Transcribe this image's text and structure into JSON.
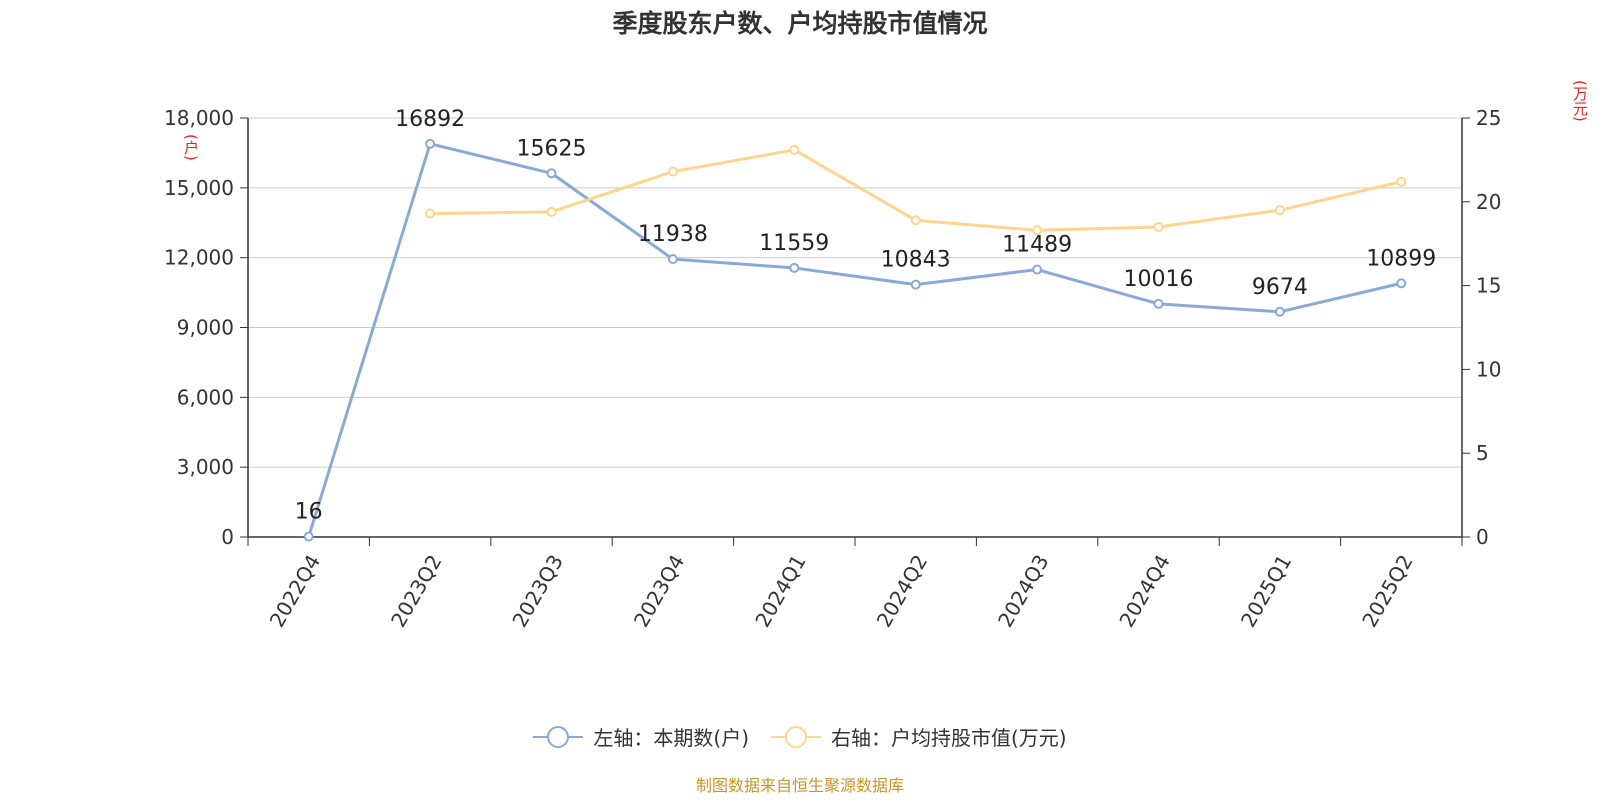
{
  "title": "季度股东户数、户均持股市值情况",
  "source": "制图数据来自恒生聚源数据库",
  "units": {
    "left": "(户)",
    "right": "(万元)"
  },
  "legend": [
    {
      "label": "左轴：本期数(户)",
      "color": "#8aaad6"
    },
    {
      "label": "右轴：户均持股市值(万元)",
      "color": "#fdd58e"
    }
  ],
  "chart_data": {
    "type": "line",
    "categories": [
      "2022Q4",
      "2023Q2",
      "2023Q3",
      "2023Q4",
      "2024Q1",
      "2024Q2",
      "2024Q3",
      "2024Q4",
      "2025Q1",
      "2025Q2"
    ],
    "y_left": {
      "ylim": [
        0,
        18000
      ],
      "ticks": [
        0,
        3000,
        6000,
        9000,
        12000,
        15000,
        18000
      ],
      "tick_labels": [
        "0",
        "3,000",
        "6,000",
        "9,000",
        "12,000",
        "15,000",
        "18,000"
      ]
    },
    "y_right": {
      "ylim": [
        0,
        25
      ],
      "ticks": [
        0,
        5,
        10,
        15,
        20,
        25
      ],
      "tick_labels": [
        "0",
        "5",
        "10",
        "15",
        "20",
        "25"
      ]
    },
    "grid": true,
    "legend_position": "bottom",
    "series": [
      {
        "name": "左轴：本期数(户)",
        "axis": "left",
        "color": "#8aaad6",
        "values": [
          16,
          16892,
          15625,
          11938,
          11559,
          10843,
          11489,
          10016,
          9674,
          10899
        ],
        "labels": [
          "16",
          "16892",
          "15625",
          "11938",
          "11559",
          "10843",
          "11489",
          "10016",
          "9674",
          "10899"
        ]
      },
      {
        "name": "右轴：户均持股市值(万元)",
        "axis": "right",
        "color": "#fdd58e",
        "values": [
          null,
          19.3,
          19.4,
          21.8,
          23.1,
          18.9,
          18.3,
          18.5,
          19.5,
          21.2
        ]
      }
    ]
  }
}
